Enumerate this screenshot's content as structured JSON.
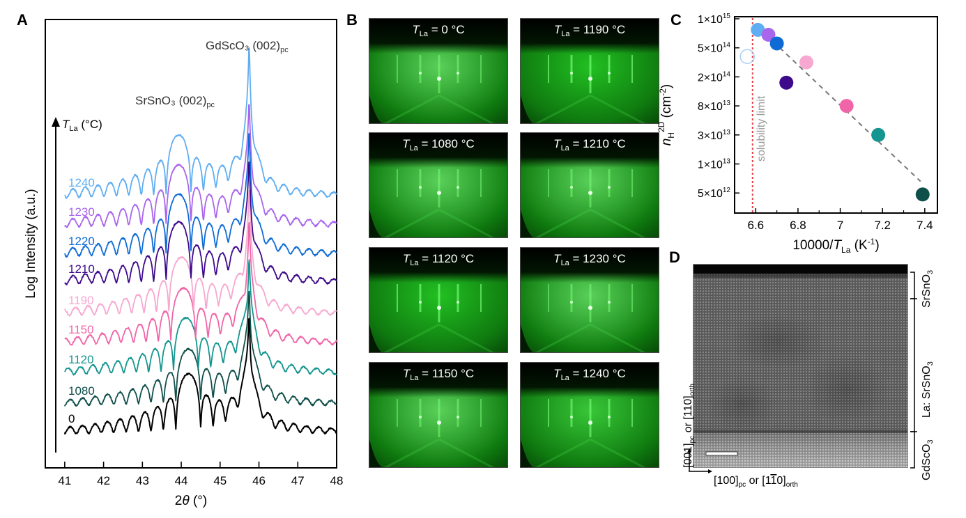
{
  "figure": {
    "panels": [
      "A",
      "B",
      "C",
      "D"
    ]
  },
  "panel_a": {
    "letter": "A",
    "annotations": {
      "substrate_peak": "GdScO₃ (002)",
      "substrate_peak_sub": "pc",
      "film_peak": "SrSnO₃ (002)",
      "film_peak_sub": "pc",
      "temp_axis_label": "T",
      "temp_axis_sub": "La",
      "temp_axis_unit": " (°C)"
    }
  },
  "panel_b": {
    "letter": "B",
    "images": [
      {
        "label_T": "T",
        "label_sub": "La",
        "label_value": " = 0 °C",
        "temp": 0
      },
      {
        "label_T": "T",
        "label_sub": "La",
        "label_value": " = 1190 °C",
        "temp": 1190
      },
      {
        "label_T": "T",
        "label_sub": "La",
        "label_value": " = 1080 °C",
        "temp": 1080
      },
      {
        "label_T": "T",
        "label_sub": "La",
        "label_value": " = 1210 °C",
        "temp": 1210
      },
      {
        "label_T": "T",
        "label_sub": "La",
        "label_value": " = 1120 °C",
        "temp": 1120
      },
      {
        "label_T": "T",
        "label_sub": "La",
        "label_value": " = 1230 °C",
        "temp": 1230
      },
      {
        "label_T": "T",
        "label_sub": "La",
        "label_value": " = 1150 °C",
        "temp": 1150
      },
      {
        "label_T": "T",
        "label_sub": "La",
        "label_value": " = 1240 °C",
        "temp": 1240
      }
    ]
  },
  "panel_c": {
    "letter": "C",
    "solubility_label": "solubility limit"
  },
  "panel_d": {
    "letter": "D",
    "layers": [
      {
        "name": "SrSnO₃"
      },
      {
        "name": "La: SrSnO₃"
      },
      {
        "name": "GdScO₃"
      }
    ],
    "x_direction": "[100]",
    "x_direction_sub1": "pc",
    "x_direction_mid": " or [1",
    "x_direction_bar": "1",
    "x_direction_end": "0]",
    "x_direction_sub2": "orth",
    "y_direction": "[001]",
    "y_direction_sub1": "pc",
    "y_direction_mid": " or [110]",
    "y_direction_sub2": "orth"
  },
  "chart_data": [
    {
      "type": "line",
      "panel": "A",
      "title": "",
      "xlabel": "2θ (°)",
      "ylabel": "Log Intensity (a.u.)",
      "xlim": [
        40.5,
        48
      ],
      "x_ticks": [
        41,
        42,
        43,
        44,
        45,
        46,
        47,
        48
      ],
      "y_ticks": [],
      "grid": false,
      "legend": "inline-left",
      "substrate_peak_2theta": 45.75,
      "series": [
        {
          "name": "0",
          "color": "#000000",
          "film_peak_2theta": 44.18,
          "film_peak_rel": 0.9,
          "baseline_rank": 0
        },
        {
          "name": "1080",
          "color": "#0f4f4a",
          "film_peak_2theta": 44.18,
          "film_peak_rel": 0.85,
          "baseline_rank": 1
        },
        {
          "name": "1120",
          "color": "#14958f",
          "film_peak_2theta": 44.12,
          "film_peak_rel": 0.85,
          "baseline_rank": 2
        },
        {
          "name": "1150",
          "color": "#f065a8",
          "film_peak_2theta": 44.05,
          "film_peak_rel": 0.85,
          "baseline_rank": 3
        },
        {
          "name": "1190",
          "color": "#f7a8d0",
          "film_peak_2theta": 44.0,
          "film_peak_rel": 0.88,
          "baseline_rank": 4
        },
        {
          "name": "1210",
          "color": "#3d0a8c",
          "film_peak_2theta": 43.93,
          "film_peak_rel": 0.95,
          "baseline_rank": 5
        },
        {
          "name": "1220",
          "color": "#0e6bd6",
          "film_peak_2theta": 43.93,
          "film_peak_rel": 0.95,
          "baseline_rank": 6
        },
        {
          "name": "1230",
          "color": "#a866ec",
          "film_peak_2theta": 43.93,
          "film_peak_rel": 0.95,
          "baseline_rank": 7
        },
        {
          "name": "1240",
          "color": "#60aef2",
          "film_peak_2theta": 43.93,
          "film_peak_rel": 0.95,
          "baseline_rank": 8
        }
      ]
    },
    {
      "type": "scatter",
      "panel": "C",
      "title": "",
      "xlabel": "10000/T",
      "xlabel_sub": "La",
      "xlabel_unit": " (K",
      "xlabel_sup": "-1",
      "xlabel_end": ")",
      "ylabel": "n",
      "ylabel_sub": "H",
      "ylabel_sup": "2D",
      "ylabel_unit": " (cm",
      "ylabel_unit_sup": "-2",
      "ylabel_end": ")",
      "xlim": [
        6.5,
        7.46
      ],
      "x_ticks": [
        6.6,
        6.8,
        7,
        7.2,
        7.4
      ],
      "x_tick_labels": [
        "6.6",
        "6.8",
        "7",
        "7.2",
        "7.4"
      ],
      "y_ticks": [
        {
          "mant": "1",
          "exp": "15"
        },
        {
          "mant": "5",
          "exp": "14"
        },
        {
          "mant": "2",
          "exp": "14"
        },
        {
          "mant": "8",
          "exp": "13"
        },
        {
          "mant": "3",
          "exp": "13"
        },
        {
          "mant": "1",
          "exp": "13"
        },
        {
          "mant": "5",
          "exp": "12"
        }
      ],
      "y_tick_positions": [
        0,
        1,
        2,
        3,
        4,
        5,
        6
      ],
      "grid": false,
      "solubility_limit_x": 6.585,
      "fit_line": {
        "x": [
          6.62,
          7.38
        ],
        "y_pos": [
          0.35,
          5.6
        ]
      },
      "points": [
        {
          "temp": 1240,
          "x": 6.61,
          "y_pos": 0.38,
          "color": "#60aef2",
          "filled": true
        },
        {
          "temp": 1230,
          "x": 6.66,
          "y_pos": 0.55,
          "color": "#a866ec",
          "filled": true
        },
        {
          "temp": 1220,
          "x": 6.7,
          "y_pos": 0.85,
          "color": "#0e6bd6",
          "filled": true
        },
        {
          "temp": 1210,
          "x": 6.745,
          "y_pos": 2.2,
          "color": "#3d0a8c",
          "filled": true
        },
        {
          "temp": 1190,
          "x": 6.84,
          "y_pos": 1.5,
          "color": "#f7a8d0",
          "filled": true
        },
        {
          "temp": 1150,
          "x": 7.03,
          "y_pos": 3.0,
          "color": "#f065a8",
          "filled": true
        },
        {
          "temp": 1120,
          "x": 7.18,
          "y_pos": 4.0,
          "color": "#14958f",
          "filled": true
        },
        {
          "temp": 1080,
          "x": 7.39,
          "y_pos": 6.05,
          "color": "#0f4f4a",
          "filled": true
        },
        {
          "temp": "open",
          "x": 6.56,
          "y_pos": 1.3,
          "color": "#a8d0f5",
          "filled": false
        }
      ]
    }
  ]
}
